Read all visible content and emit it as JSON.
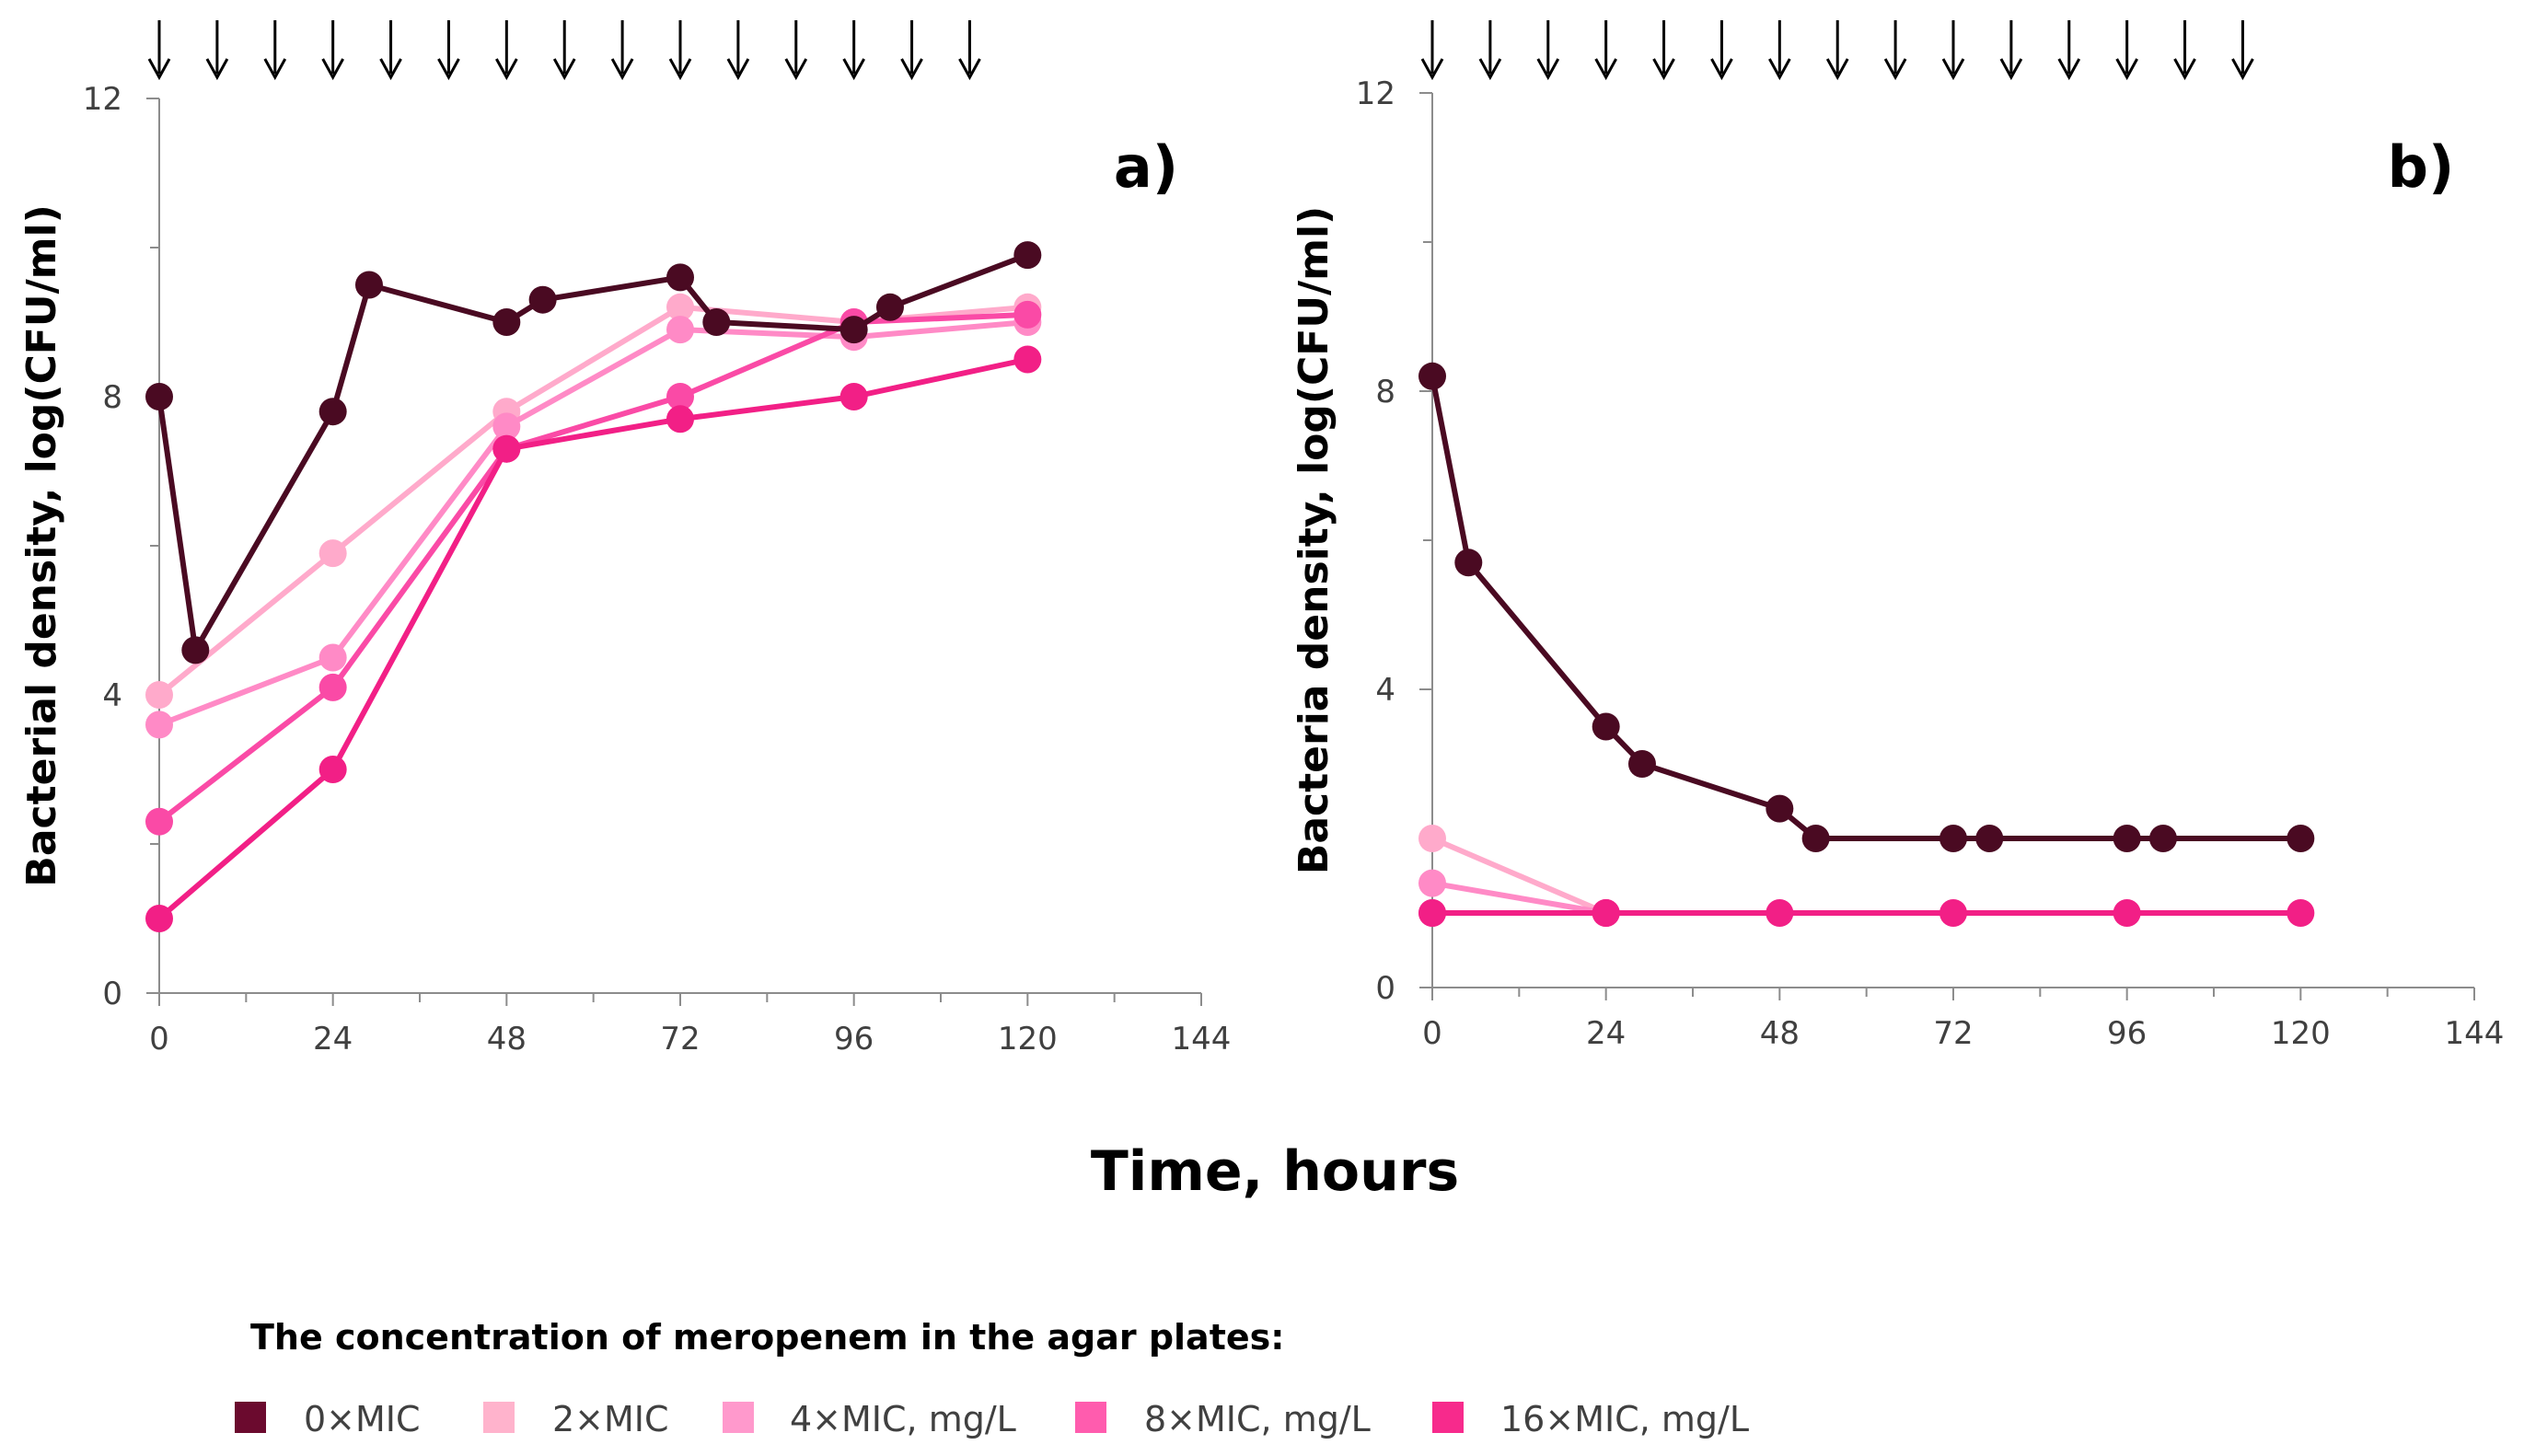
{
  "xlabel": "Time, hours",
  "legend": {
    "title": "The concentration of meropenem in the agar plates:",
    "entries": [
      {
        "label": "0×MIC",
        "color": "#6b0a2e"
      },
      {
        "label": "2×MIC",
        "color": "#ffb3cc"
      },
      {
        "label": "4×MIC, mg/L",
        "color": "#ff99cc"
      },
      {
        "label": "8×MIC, mg/L",
        "color": "#ff5cae"
      },
      {
        "label": "16×MIC, mg/L",
        "color": "#f72a8c"
      }
    ]
  },
  "chart_data": [
    {
      "type": "line",
      "panel_label": "a)",
      "title": "",
      "xlabel": "Time, hours",
      "ylabel": "Bacterial density, log(CFU/ml)",
      "xlim": [
        0,
        144
      ],
      "ylim": [
        0,
        12
      ],
      "xticks": [
        0,
        24,
        48,
        72,
        96,
        120,
        144
      ],
      "yticks": [
        0,
        4,
        8,
        12
      ],
      "x_tick_labels": [
        "0",
        "24",
        "48",
        "72",
        "96",
        "120",
        "144"
      ],
      "y_tick_labels": [
        "0",
        "4",
        "8",
        "12"
      ],
      "dosing_arrow_times": [
        0,
        8,
        16,
        24,
        32,
        40,
        48,
        56,
        64,
        72,
        80,
        88,
        96,
        104,
        112
      ],
      "series": [
        {
          "name": "0×MIC",
          "color": "#4a0a22",
          "x": [
            0,
            5,
            24,
            29,
            48,
            53,
            72,
            77,
            96,
            101,
            120
          ],
          "y": [
            8.0,
            4.6,
            7.8,
            9.5,
            9.0,
            9.3,
            9.6,
            9.0,
            8.9,
            9.2,
            9.9
          ]
        },
        {
          "name": "2×MIC",
          "color": "#ffaacb",
          "x": [
            0,
            24,
            48,
            72,
            96,
            120
          ],
          "y": [
            4.0,
            5.9,
            7.8,
            9.2,
            9.0,
            9.2
          ]
        },
        {
          "name": "4×MIC, mg/L",
          "color": "#ff8ac6",
          "x": [
            0,
            24,
            48,
            72,
            96,
            120
          ],
          "y": [
            3.6,
            4.5,
            7.6,
            8.9,
            8.8,
            9.0
          ]
        },
        {
          "name": "8×MIC, mg/L",
          "color": "#fa4aa6",
          "x": [
            0,
            24,
            48,
            72,
            96,
            120
          ],
          "y": [
            2.3,
            4.1,
            7.3,
            8.0,
            9.0,
            9.1
          ]
        },
        {
          "name": "16×MIC, mg/L",
          "color": "#f21f86",
          "x": [
            0,
            24,
            48,
            72,
            96,
            120
          ],
          "y": [
            1.0,
            3.0,
            7.3,
            7.7,
            8.0,
            8.5
          ]
        }
      ]
    },
    {
      "type": "line",
      "panel_label": "b)",
      "title": "",
      "xlabel": "Time, hours",
      "ylabel": "Bacteria density, log(CFU/ml)",
      "xlim": [
        0,
        144
      ],
      "ylim": [
        0,
        12
      ],
      "xticks": [
        0,
        24,
        48,
        72,
        96,
        120,
        144
      ],
      "yticks": [
        0,
        4,
        8,
        12
      ],
      "x_tick_labels": [
        "0",
        "24",
        "48",
        "72",
        "96",
        "120",
        "144"
      ],
      "y_tick_labels": [
        "0",
        "4",
        "8",
        "12"
      ],
      "dosing_arrow_times": [
        0,
        8,
        16,
        24,
        32,
        40,
        48,
        56,
        64,
        72,
        80,
        88,
        96,
        104,
        112
      ],
      "series": [
        {
          "name": "0×MIC",
          "color": "#4a0a22",
          "x": [
            0,
            5,
            24,
            29,
            48,
            53,
            72,
            77,
            96,
            101,
            120
          ],
          "y": [
            8.2,
            5.7,
            3.5,
            3.0,
            2.4,
            2.0,
            2.0,
            2.0,
            2.0,
            2.0,
            2.0
          ]
        },
        {
          "name": "2×MIC",
          "color": "#ffaacb",
          "x": [
            0,
            24
          ],
          "y": [
            2.0,
            1.0
          ]
        },
        {
          "name": "4×MIC, mg/L",
          "color": "#ff8ac6",
          "x": [
            0,
            24
          ],
          "y": [
            1.4,
            1.0
          ]
        },
        {
          "name": "8×MIC, mg/L",
          "color": "#fa4aa6",
          "x": [
            0,
            24
          ],
          "y": [
            1.0,
            1.0
          ]
        },
        {
          "name": "16×MIC, mg/L",
          "color": "#f21f86",
          "x": [
            0,
            24,
            48,
            72,
            96,
            120
          ],
          "y": [
            1.0,
            1.0,
            1.0,
            1.0,
            1.0,
            1.0
          ]
        }
      ]
    }
  ]
}
